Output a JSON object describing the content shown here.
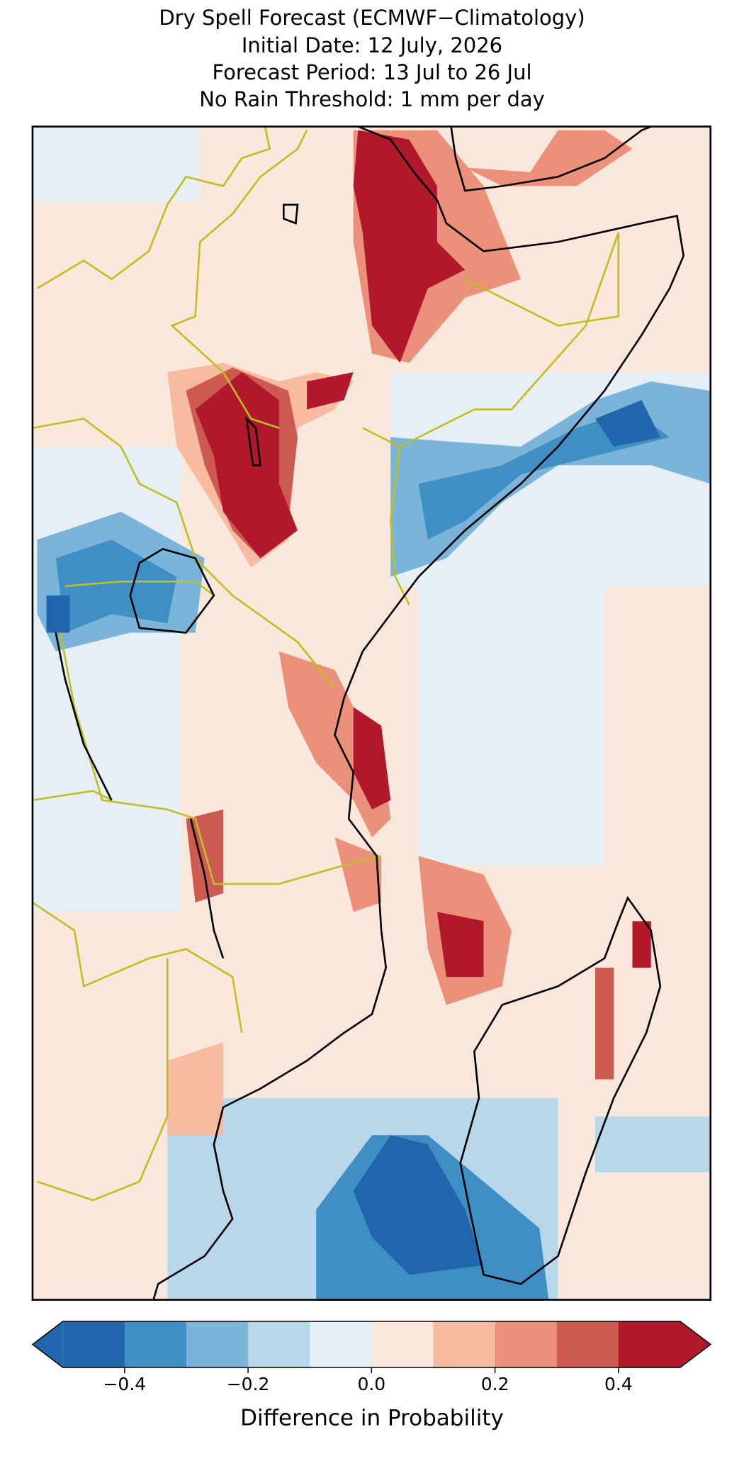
{
  "chart_data": {
    "type": "map",
    "title": "Dry Spell Forecast (ECMWF−Climatology)",
    "subtitle": [
      "Initial Date: 12 July, 2026",
      "Forecast Period: 13 Jul to 26 Jul",
      "No Rain Threshold: 1 mm per day"
    ],
    "colorbar": {
      "label": "Difference in Probability",
      "boundaries": [
        -0.5,
        -0.4,
        -0.3,
        -0.2,
        -0.1,
        0,
        0.1,
        0.2,
        0.3,
        0.4,
        0.5
      ],
      "colors": [
        "#2166ac",
        "#3f8fc5",
        "#7ab4d8",
        "#b8d7ea",
        "#e5eff5",
        "#fae7dc",
        "#f7bba1",
        "#eb907b",
        "#cc5a51",
        "#b2182b"
      ],
      "ticks": [
        {
          "value": -0.4,
          "label": "−0.4"
        },
        {
          "value": -0.2,
          "label": "−0.2"
        },
        {
          "value": 0,
          "label": "0.0"
        },
        0.2,
        0.4
      ]
    }
  }
}
